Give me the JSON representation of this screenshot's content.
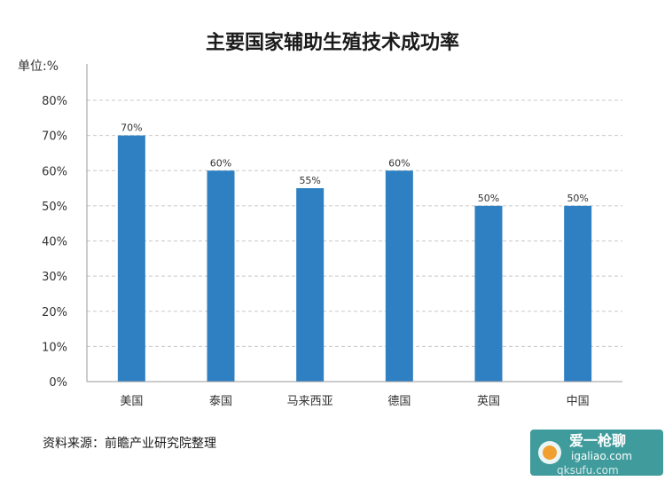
{
  "chart_data": {
    "type": "bar",
    "title": "主要国家辅助生殖技术成功率",
    "unit_label": "单位:%",
    "categories": [
      "美国",
      "泰国",
      "马来西亚",
      "德国",
      "英国",
      "中国"
    ],
    "values": [
      70,
      60,
      55,
      60,
      50,
      50
    ],
    "data_labels": [
      "70%",
      "60%",
      "55%",
      "60%",
      "50%",
      "50%"
    ],
    "y_ticks": [
      0,
      10,
      20,
      30,
      40,
      50,
      60,
      70,
      80
    ],
    "y_tick_labels": [
      "0%",
      "10%",
      "20%",
      "30%",
      "40%",
      "50%",
      "60%",
      "70%",
      "80%"
    ],
    "ylim": [
      0,
      80
    ],
    "grid": true,
    "legend": "none",
    "bar_color": "#2e80c3",
    "grid_color": "#c8c8c8"
  },
  "source_note": "资料来源：前瞻产业研究院整理",
  "watermark": {
    "line1": "爱一枪聊",
    "line2": "igaliao.com",
    "line3": "qksufu.com"
  }
}
